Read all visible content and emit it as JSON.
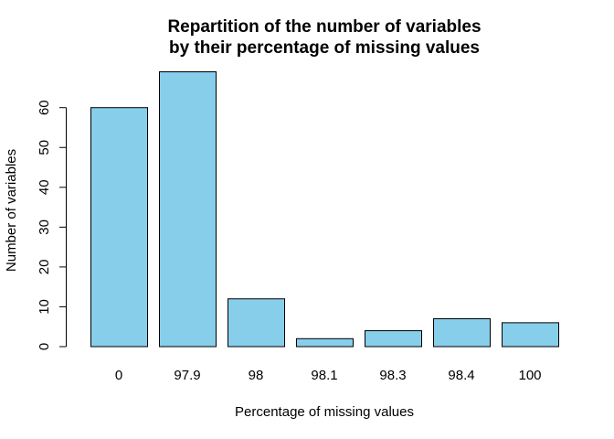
{
  "chart_data": {
    "type": "bar",
    "title_lines": [
      "Repartition of the number of variables",
      "by their percentage of missing values"
    ],
    "xlabel": "Percentage of missing values",
    "ylabel": "Number of variables",
    "categories": [
      "0",
      "97.9",
      "98",
      "98.1",
      "98.3",
      "98.4",
      "100"
    ],
    "values": [
      60,
      69,
      12,
      2,
      4,
      7,
      6
    ],
    "yticks": [
      0,
      10,
      20,
      30,
      40,
      50,
      60
    ],
    "ylim": [
      0,
      72
    ],
    "grid": false,
    "legend": "none",
    "bar_color": "#87CEEB",
    "bar_border_color": "#000000"
  }
}
